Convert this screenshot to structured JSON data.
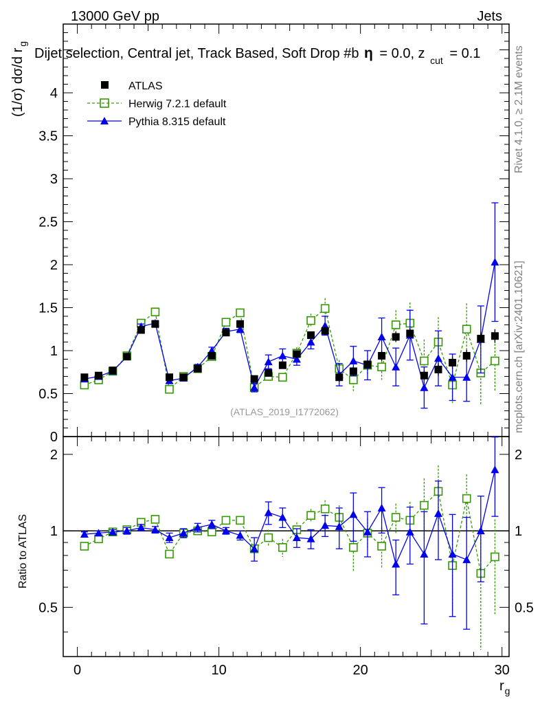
{
  "header": {
    "left": "13000 GeV pp",
    "right": "Jets",
    "selection_title": "Dijet selection, Central jet, Track Based, Soft Drop #b",
    "selection_suffix": "= 0.0, z",
    "selection_sub": "cut",
    "selection_end": "= 0.1"
  },
  "side_labels": {
    "rivet": "Rivet 4.1.0, ≥ 2.1M events",
    "mcplots": "mcplots.cern.ch [arXiv:2401.10621]"
  },
  "watermark": "(ATLAS_2019_I1772062)",
  "colors": {
    "atlas": "#000000",
    "herwig": "#339900",
    "pythia": "#0000ee"
  },
  "chart_data": [
    {
      "type": "line",
      "panel": "main",
      "ylabel": "(1/σ) dσ/d r",
      "ylabel_sub": "g",
      "ylim": [
        0,
        4.8
      ],
      "xlim": [
        -1,
        30.5
      ],
      "yticks": [
        "0",
        "0.5",
        "1",
        "1.5",
        "2",
        "2.5",
        "3",
        "3.5",
        "4"
      ],
      "x": [
        0.5,
        1.5,
        2.5,
        3.5,
        4.5,
        5.5,
        6.5,
        7.5,
        8.5,
        9.5,
        10.5,
        11.5,
        12.5,
        13.5,
        14.5,
        15.5,
        16.5,
        17.5,
        18.5,
        19.5,
        20.5,
        21.5,
        22.5,
        23.5,
        24.5,
        25.5,
        26.5,
        27.5,
        28.5,
        29.5
      ],
      "legend": [
        "ATLAS",
        "Herwig 7.2.1 default",
        "Pythia 8.315 default"
      ],
      "series": [
        {
          "name": "ATLAS",
          "values": [
            0.69,
            0.71,
            0.77,
            0.93,
            1.24,
            1.31,
            0.69,
            0.69,
            0.79,
            0.94,
            1.21,
            1.31,
            0.67,
            0.74,
            0.83,
            0.96,
            1.18,
            1.23,
            0.69,
            0.76,
            0.84,
            0.94,
            1.16,
            1.2,
            0.71,
            0.78,
            0.86,
            0.94,
            1.14,
            1.17
          ],
          "errors": [
            0.02,
            0.02,
            0.02,
            0.02,
            0.03,
            0.03,
            0.03,
            0.03,
            0.03,
            0.03,
            0.03,
            0.03,
            0.04,
            0.04,
            0.04,
            0.04,
            0.04,
            0.05,
            0.05,
            0.05,
            0.05,
            0.06,
            0.06,
            0.06,
            0.06,
            0.07,
            0.07,
            0.07,
            0.08,
            0.08
          ]
        },
        {
          "name": "Herwig 7.2.1 default",
          "values": [
            0.6,
            0.66,
            0.76,
            0.94,
            1.32,
            1.45,
            0.55,
            0.7,
            0.79,
            0.93,
            1.33,
            1.44,
            0.57,
            0.7,
            0.69,
            0.97,
            1.35,
            1.49,
            0.79,
            0.66,
            0.83,
            0.81,
            1.3,
            1.32,
            0.88,
            1.1,
            0.6,
            1.25,
            0.74,
            0.88
          ],
          "errors": [
            0.02,
            0.02,
            0.02,
            0.03,
            0.04,
            0.05,
            0.03,
            0.03,
            0.03,
            0.04,
            0.05,
            0.05,
            0.05,
            0.05,
            0.05,
            0.07,
            0.08,
            0.12,
            0.1,
            0.13,
            0.12,
            0.15,
            0.17,
            0.24,
            0.25,
            0.29,
            0.21,
            0.3,
            0.38,
            0.36
          ]
        },
        {
          "name": "Pythia 8.315 default",
          "values": [
            0.67,
            0.7,
            0.76,
            0.93,
            1.28,
            1.32,
            0.65,
            0.68,
            0.81,
            1.0,
            1.22,
            1.25,
            0.57,
            0.87,
            0.94,
            0.9,
            1.1,
            1.29,
            0.72,
            0.88,
            0.83,
            1.16,
            0.81,
            1.18,
            0.57,
            0.91,
            0.69,
            0.69,
            1.13,
            2.03
          ],
          "errors": [
            0.02,
            0.02,
            0.02,
            0.03,
            0.03,
            0.03,
            0.03,
            0.03,
            0.03,
            0.04,
            0.04,
            0.04,
            0.05,
            0.08,
            0.08,
            0.07,
            0.08,
            0.11,
            0.13,
            0.17,
            0.17,
            0.22,
            0.22,
            0.29,
            0.24,
            0.32,
            0.27,
            0.28,
            0.39,
            0.69
          ]
        }
      ]
    },
    {
      "type": "line",
      "panel": "ratio",
      "ylabel": "Ratio to ATLAS",
      "xlabel": "r",
      "xlabel_sub": "g",
      "ylim": [
        0.32,
        2.35
      ],
      "xlim": [
        -1,
        30.5
      ],
      "yticks": [
        "0.5",
        "1",
        "2"
      ],
      "xticks": [
        "0",
        "10",
        "20",
        "30"
      ],
      "x": [
        0.5,
        1.5,
        2.5,
        3.5,
        4.5,
        5.5,
        6.5,
        7.5,
        8.5,
        9.5,
        10.5,
        11.5,
        12.5,
        13.5,
        14.5,
        15.5,
        16.5,
        17.5,
        18.5,
        19.5,
        20.5,
        21.5,
        22.5,
        23.5,
        24.5,
        25.5,
        26.5,
        27.5,
        28.5,
        29.5
      ],
      "series": [
        {
          "name": "Herwig 7.2.1 default",
          "values": [
            0.87,
            0.93,
            0.99,
            1.01,
            1.08,
            1.11,
            0.81,
            0.98,
            1.0,
            0.99,
            1.1,
            1.1,
            0.85,
            0.94,
            0.86,
            1.01,
            1.15,
            1.22,
            1.13,
            0.86,
            0.98,
            0.87,
            1.13,
            1.1,
            1.26,
            1.43,
            0.73,
            1.34,
            0.68,
            0.79
          ],
          "errors": [
            0.02,
            0.02,
            0.02,
            0.02,
            0.03,
            0.03,
            0.03,
            0.03,
            0.03,
            0.03,
            0.04,
            0.04,
            0.08,
            0.07,
            0.07,
            0.07,
            0.07,
            0.1,
            0.13,
            0.17,
            0.14,
            0.16,
            0.15,
            0.2,
            0.35,
            0.38,
            0.25,
            0.33,
            0.34,
            0.32
          ]
        },
        {
          "name": "Pythia 8.315 default",
          "values": [
            0.97,
            0.98,
            0.99,
            1.0,
            1.03,
            1.01,
            0.94,
            0.98,
            1.03,
            1.06,
            1.0,
            0.96,
            0.85,
            1.18,
            1.13,
            0.94,
            0.93,
            1.05,
            1.04,
            1.16,
            0.99,
            1.23,
            0.74,
            0.99,
            0.81,
            1.17,
            0.81,
            0.77,
            1.0,
            1.74
          ],
          "errors": [
            0.02,
            0.02,
            0.02,
            0.03,
            0.03,
            0.03,
            0.04,
            0.04,
            0.04,
            0.04,
            0.03,
            0.04,
            0.09,
            0.12,
            0.1,
            0.08,
            0.08,
            0.1,
            0.19,
            0.25,
            0.2,
            0.25,
            0.18,
            0.25,
            0.38,
            0.4,
            0.35,
            0.36,
            0.37,
            0.6
          ]
        }
      ]
    }
  ]
}
